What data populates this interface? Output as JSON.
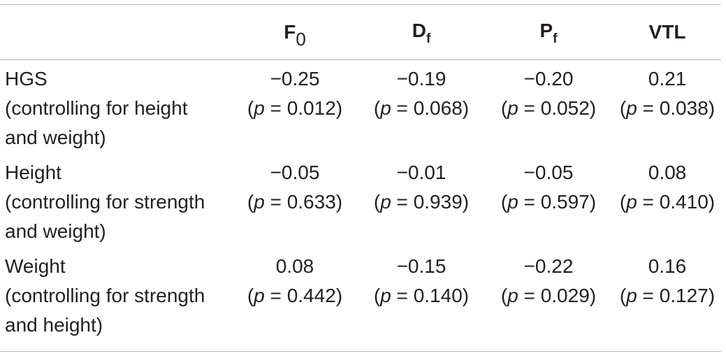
{
  "table": {
    "headers": [
      {
        "main": "",
        "sub": ""
      },
      {
        "main": "F",
        "sub": "0"
      },
      {
        "main": "D",
        "sub": "f"
      },
      {
        "main": "P",
        "sub": "f"
      },
      {
        "main": "VTL",
        "sub": ""
      }
    ],
    "rows": [
      {
        "label_lines": [
          "HGS",
          "(controlling for height",
          "and weight)"
        ],
        "values": [
          "−0.25",
          "−0.19",
          "−0.20",
          "0.21"
        ],
        "p_values": [
          "0.012",
          "0.068",
          "0.052",
          "0.038"
        ]
      },
      {
        "label_lines": [
          "Height",
          "(controlling for strength",
          "and weight)"
        ],
        "values": [
          "−0.05",
          "−0.01",
          "−0.05",
          "0.08"
        ],
        "p_values": [
          "0.633",
          "0.939",
          "0.597",
          "0.410"
        ]
      },
      {
        "label_lines": [
          "Weight",
          "(controlling for strength",
          "and height)"
        ],
        "values": [
          "0.08",
          "−0.15",
          "−0.22",
          "0.16"
        ],
        "p_values": [
          "0.442",
          "0.140",
          "0.029",
          "0.127"
        ]
      }
    ],
    "p_prefix": "p",
    "p_eq": " = "
  }
}
